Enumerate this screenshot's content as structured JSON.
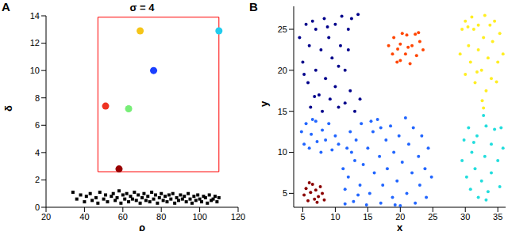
{
  "chart_data": [
    {
      "panel": "A",
      "type": "scatter",
      "title": "σ = 4",
      "x_label": "ρ",
      "y_label": "δ",
      "xlim": [
        20,
        120
      ],
      "xticks": [
        20,
        40,
        60,
        80,
        100,
        120
      ],
      "ylim": [
        0,
        14
      ],
      "yticks": [
        0,
        2,
        4,
        6,
        8,
        10,
        12,
        14
      ],
      "selection_box": {
        "x": [
          47,
          110
        ],
        "y": [
          2.6,
          13.9
        ],
        "color": "#ff0000"
      },
      "series": [
        {
          "color": "#000000",
          "marker": "square",
          "x": [
            34,
            36,
            38,
            40,
            41,
            43,
            44,
            46,
            47,
            48,
            50,
            51,
            52,
            54,
            55,
            56,
            57,
            58,
            59,
            60,
            61,
            62,
            63,
            64,
            65,
            66,
            67,
            68,
            69,
            70,
            71,
            72,
            73,
            74,
            75,
            76,
            77,
            78,
            79,
            80,
            81,
            82,
            83,
            84,
            85,
            86,
            87,
            88,
            89,
            90,
            91,
            92,
            93,
            94,
            95,
            96,
            97,
            98,
            99,
            100,
            101,
            102,
            103,
            104,
            105,
            106,
            107,
            108,
            109,
            110
          ],
          "y": [
            1.1,
            0.6,
            0.9,
            0.4,
            0.8,
            1.0,
            0.5,
            0.7,
            0.3,
            1.1,
            0.6,
            0.9,
            0.4,
            0.8,
            1.0,
            0.5,
            0.7,
            1.2,
            0.3,
            0.9,
            0.6,
            1.0,
            0.4,
            0.8,
            0.6,
            1.1,
            0.5,
            0.9,
            0.3,
            0.7,
            1.0,
            0.5,
            0.8,
            0.4,
            1.1,
            0.6,
            0.9,
            0.3,
            0.7,
            1.0,
            0.5,
            0.8,
            0.4,
            0.9,
            0.6,
            1.0,
            0.3,
            0.7,
            0.5,
            0.9,
            0.6,
            0.8,
            0.4,
            1.0,
            0.6,
            0.3,
            0.8,
            0.5,
            0.9,
            0.6,
            0.4,
            0.8,
            0.7,
            0.3,
            0.9,
            0.5,
            0.6,
            0.8,
            0.4,
            0.7
          ]
        },
        {
          "colors": [
            "#22ccee",
            "#f5c518",
            "#1a3fff",
            "#ee3322",
            "#77ee77",
            "#990000"
          ],
          "marker": "circle",
          "x": [
            110,
            69,
            76,
            51,
            63,
            58
          ],
          "y": [
            12.9,
            12.9,
            10,
            7.4,
            7.2,
            2.8
          ]
        }
      ]
    },
    {
      "panel": "B",
      "type": "scatter",
      "x_label": "x",
      "y_label": "y",
      "xlim": [
        3.6,
        36.2
      ],
      "xticks": [
        5,
        10,
        15,
        20,
        25,
        30,
        35
      ],
      "ylim": [
        3.3,
        27.8
      ],
      "yticks": [
        5,
        10,
        15,
        20,
        25
      ],
      "series": [
        {
          "color": "#00008b",
          "marker": "circle",
          "x": [
            4.5,
            5,
            5.5,
            5.8,
            6,
            6.2,
            6.5,
            7,
            7,
            7.5,
            7.8,
            8,
            8.3,
            8.5,
            9,
            9.2,
            9.5,
            10,
            10,
            10.5,
            10.8,
            11,
            11.5,
            11.5,
            12,
            12.5,
            12.3,
            13,
            13.5,
            13.8,
            10.5,
            8.8,
            6.8,
            12,
            5.2
          ],
          "y": [
            24,
            21,
            25.6,
            18.5,
            23,
            15.5,
            26,
            20,
            25,
            17,
            22.5,
            15,
            26.3,
            19,
            24,
            16.5,
            21.5,
            25.6,
            18,
            15.5,
            23,
            26.6,
            20,
            16,
            25,
            26.3,
            17.5,
            15,
            26.8,
            16.5,
            20.5,
            25.3,
            16.8,
            22.5,
            19.5
          ]
        },
        {
          "color": "#ff4500",
          "marker": "circle",
          "x": [
            18.2,
            18.8,
            19,
            19.5,
            20,
            20.3,
            20.8,
            21,
            21.5,
            21.8,
            22.3,
            22.5,
            23,
            23.5,
            20,
            21.2,
            19.6,
            22.8
          ],
          "y": [
            23,
            22,
            24,
            21,
            23.2,
            24.5,
            22,
            24.3,
            20.8,
            23,
            24.4,
            21.8,
            23.5,
            22.5,
            21.2,
            22.8,
            22.6,
            24.6
          ]
        },
        {
          "color": "#ffee22",
          "marker": "circle",
          "x": [
            29.2,
            29.5,
            30,
            30,
            30.5,
            30.8,
            31,
            31.3,
            31.5,
            32,
            32,
            32.5,
            32.8,
            33,
            33.2,
            33.5,
            33.8,
            34,
            34.2,
            34.5,
            35,
            35.3,
            35.8,
            32.6,
            32.8,
            31.8,
            30.4,
            34.8
          ],
          "y": [
            22,
            25,
            19.5,
            26,
            23,
            21,
            26.5,
            25,
            18.5,
            22.5,
            25.5,
            20,
            24,
            26.7,
            17.5,
            21.5,
            25.5,
            19,
            23.5,
            26,
            21,
            24.5,
            22,
            16.3,
            15.4,
            19.8,
            25.3,
            18.6
          ]
        },
        {
          "color": "#22dddd",
          "marker": "circle",
          "x": [
            29.5,
            29.8,
            30.2,
            30.5,
            30.8,
            31,
            31.5,
            31.8,
            32,
            32.5,
            32.8,
            33,
            33.2,
            33.5,
            34,
            34,
            34.5,
            35,
            35.3,
            35.8,
            33.2,
            31.3,
            35.5
          ],
          "y": [
            9,
            11.5,
            7,
            13,
            5.5,
            10,
            8,
            12,
            4.5,
            6.5,
            14.5,
            9.5,
            13.2,
            5.2,
            11,
            7.5,
            12.8,
            9,
            5.8,
            10.5,
            4.2,
            11.2,
            13
          ]
        },
        {
          "color": "#2266ff",
          "marker": "circle",
          "x": [
            4.8,
            5.2,
            5.5,
            6,
            6.3,
            7,
            7.2,
            7.8,
            8,
            8.5,
            9,
            9.5,
            10,
            10.5,
            6.5,
            11.2,
            11.5,
            11.8,
            12,
            12.3,
            12.8,
            13,
            13.2,
            13.8,
            14,
            14.3,
            14.8,
            15,
            15.3,
            15.8,
            16,
            16.5,
            16.8,
            17,
            17.3,
            17.8,
            18,
            18.5,
            18.8,
            19,
            19.5,
            19.8,
            20,
            20.3,
            20.8,
            21,
            21.3,
            21.8,
            22,
            22.3,
            22.8,
            23,
            23.3,
            23.8,
            24,
            24.3,
            24.8,
            15.5,
            13.5,
            19.2,
            17,
            11.5,
            12.5
          ],
          "y": [
            12.5,
            11,
            13.5,
            10.5,
            12.2,
            13.8,
            11.3,
            10,
            12.7,
            11.5,
            13.5,
            10.3,
            12,
            11,
            14,
            8,
            5.5,
            10.5,
            7,
            12.5,
            4,
            9,
            11.5,
            6,
            13.5,
            8.5,
            3.6,
            10.5,
            5,
            12.5,
            7.5,
            14,
            9.5,
            3.8,
            6,
            11.5,
            8,
            13.2,
            4.5,
            10,
            6.5,
            12,
            3.5,
            8.8,
            14.2,
            5,
            11,
            7.5,
            13,
            3.8,
            9.5,
            6,
            12,
            8,
            4.5,
            10.5,
            7,
            13.8,
            4.8,
            3.6,
            13,
            3.7,
            10
          ]
        },
        {
          "color": "#8b0000",
          "marker": "circle",
          "x": [
            5.2,
            5.5,
            5.8,
            6.2,
            6.5,
            6.8,
            7,
            7.4,
            7.7,
            8,
            8.3,
            6,
            7.2
          ],
          "y": [
            4.8,
            5.6,
            4.1,
            5.1,
            6.1,
            4.3,
            5.4,
            4.6,
            5.8,
            5,
            4.2,
            6.3,
            3.9
          ]
        }
      ]
    }
  ]
}
